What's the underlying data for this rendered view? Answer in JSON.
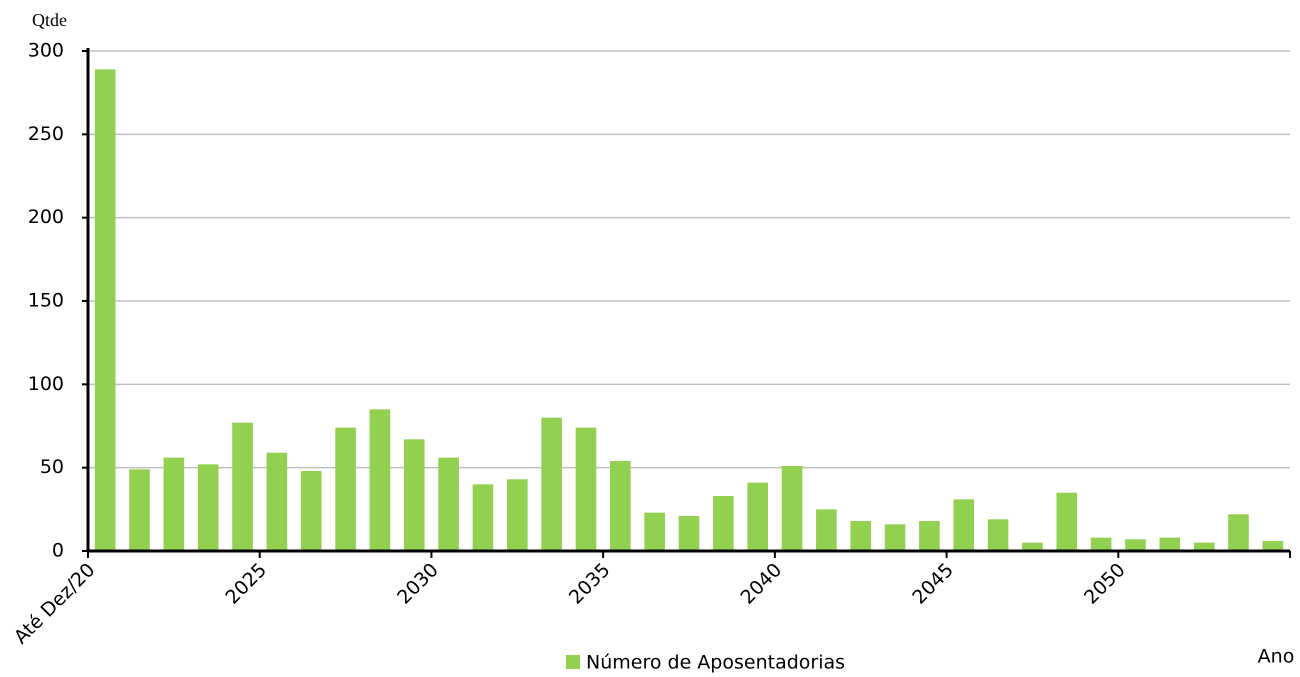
{
  "chart_data": {
    "type": "bar",
    "y_label": "Qtde",
    "x_label": "Ano",
    "categories": [
      "Até Dez/20",
      null,
      null,
      null,
      null,
      "2025",
      null,
      null,
      null,
      null,
      "2030",
      null,
      null,
      null,
      null,
      "2035",
      null,
      null,
      null,
      null,
      "2040",
      null,
      null,
      null,
      null,
      "2045",
      null,
      null,
      null,
      null,
      "2050",
      null,
      null,
      null,
      null
    ],
    "series": [
      {
        "name": "Número de Aposentadorias",
        "color": "#92d050",
        "values": [
          289,
          49,
          56,
          52,
          77,
          59,
          48,
          74,
          85,
          67,
          56,
          40,
          43,
          80,
          74,
          54,
          23,
          21,
          33,
          41,
          51,
          25,
          18,
          16,
          18,
          31,
          19,
          5,
          35,
          8,
          7,
          8,
          5,
          22,
          6
        ]
      }
    ],
    "ylim": [
      0,
      300
    ],
    "yticks": [
      0,
      50,
      100,
      150,
      200,
      250,
      300
    ],
    "grid": true
  }
}
